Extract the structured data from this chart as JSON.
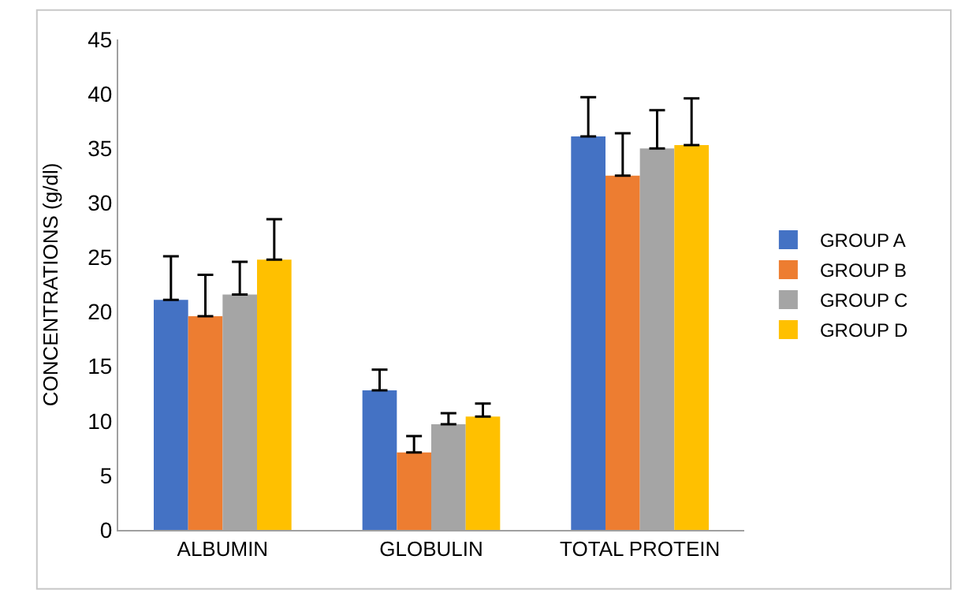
{
  "chart_data": {
    "type": "bar",
    "ylabel": "CONCENTRATIONS (g/dl)",
    "categories": [
      "ALBUMIN",
      "GLOBULIN",
      "TOTAL PROTEIN"
    ],
    "series": [
      {
        "name": "GROUP A",
        "color": "#4472c4",
        "values": [
          21.1,
          12.8,
          36.1
        ],
        "errors": [
          [
            21.1,
            25.1
          ],
          [
            12.8,
            14.7
          ],
          [
            36.1,
            39.7
          ]
        ]
      },
      {
        "name": "GROUP B",
        "color": "#ed7d31",
        "values": [
          19.6,
          7.1,
          32.5
        ],
        "errors": [
          [
            19.6,
            23.4
          ],
          [
            7.1,
            8.6
          ],
          [
            32.5,
            36.4
          ]
        ]
      },
      {
        "name": "GROUP C",
        "color": "#a5a5a5",
        "values": [
          21.6,
          9.7,
          35.0
        ],
        "errors": [
          [
            21.6,
            24.6
          ],
          [
            9.7,
            10.7
          ],
          [
            35.0,
            38.5
          ]
        ]
      },
      {
        "name": "GROUP D",
        "color": "#ffc000",
        "values": [
          24.8,
          10.4,
          35.3
        ],
        "errors": [
          [
            24.8,
            28.5
          ],
          [
            10.4,
            11.6
          ],
          [
            35.3,
            39.6
          ]
        ]
      }
    ],
    "ylim": [
      0,
      45
    ],
    "yticks": [
      0,
      5,
      10,
      15,
      20,
      25,
      30,
      35,
      40,
      45
    ],
    "legend": "right"
  }
}
